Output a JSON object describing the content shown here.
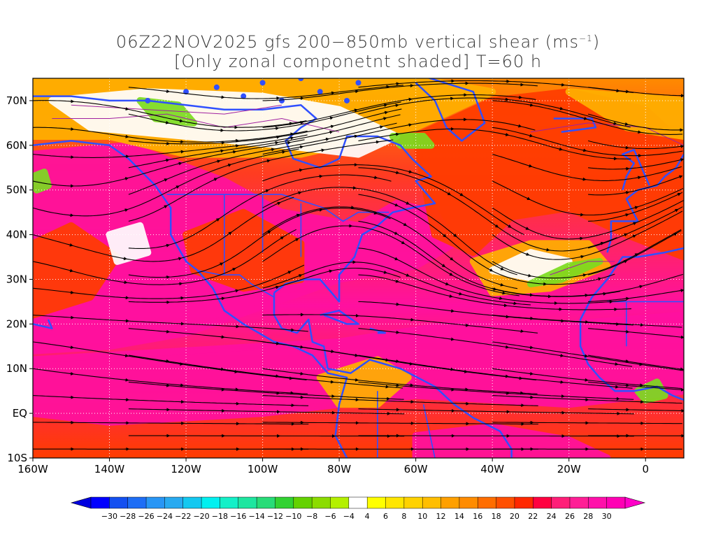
{
  "title": {
    "line1_prefix": "06Z22NOV2025 gfs 200−850mb vertical shear (ms",
    "line1_unit_sup": "−1",
    "line1_suffix": ")",
    "line2": "[Only zonal componetnt shaded] T=60 h"
  },
  "axes": {
    "lon_labels": [
      "160W",
      "140W",
      "120W",
      "100W",
      "80W",
      "60W",
      "40W",
      "20W",
      "0"
    ],
    "lat_labels": [
      "70N",
      "60N",
      "50N",
      "40N",
      "30N",
      "20N",
      "10N",
      "EQ",
      "10S"
    ],
    "lon_range": [
      -160,
      10
    ],
    "lat_range": [
      -10,
      75
    ]
  },
  "colorbar": {
    "labels": [
      "−30",
      "−28",
      "−26",
      "−24",
      "−22",
      "−20",
      "−18",
      "−16",
      "−14",
      "−12",
      "−10",
      "−8",
      "−6",
      "−4",
      "4",
      "6",
      "8",
      "10",
      "12",
      "14",
      "16",
      "18",
      "20",
      "22",
      "24",
      "26",
      "28",
      "30"
    ],
    "colors": [
      "#0000ff",
      "#1450f0",
      "#1e6ef5",
      "#2896f5",
      "#28aaf0",
      "#14c8f0",
      "#00f0f0",
      "#14f0c8",
      "#1ee6a0",
      "#28dc78",
      "#32d232",
      "#64d200",
      "#8cdc00",
      "#b4f000",
      "#ffffff",
      "#ffff00",
      "#ffe600",
      "#ffd200",
      "#ffbe00",
      "#ffa000",
      "#ff8c00",
      "#ff6e00",
      "#ff5000",
      "#ff2800",
      "#ff0040",
      "#ff1e78",
      "#ff1e96",
      "#ff10aa",
      "#ff00b4"
    ],
    "under_color": "#0000e0",
    "over_color": "#ff00c8"
  },
  "map": {
    "colors": {
      "strong_positive": "#ff10a0",
      "moderate": "#ff3c00",
      "weak": "#ffb000",
      "near_zero": "#ffffff",
      "negative": "#7cdc20",
      "coastline": "#3050ff",
      "contour": "#a020a0",
      "streamline": "#000000",
      "grid": "#ffffff"
    }
  }
}
